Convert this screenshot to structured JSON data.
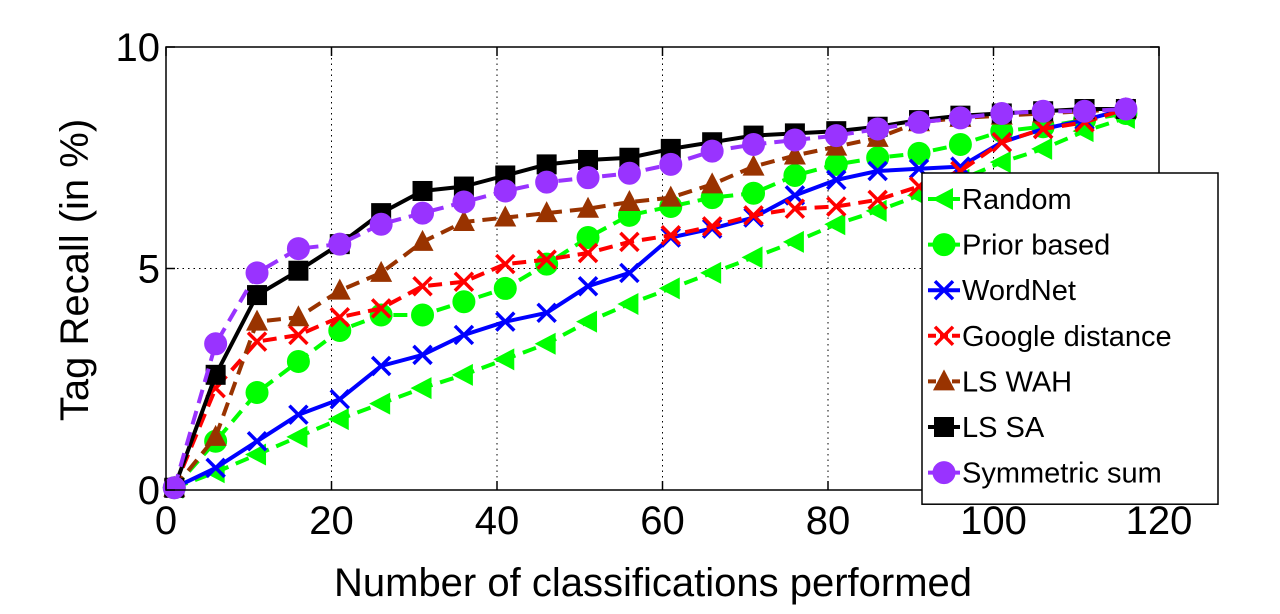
{
  "chart_data": {
    "type": "line",
    "title": "",
    "xlabel": "Number of classifications performed",
    "ylabel": "Tag Recall (in %)",
    "xlim": [
      0,
      120
    ],
    "ylim": [
      0,
      10
    ],
    "xticks": [
      0,
      20,
      40,
      60,
      80,
      100,
      120
    ],
    "yticks": [
      0,
      5,
      10
    ],
    "grid": true,
    "legend_position": "right",
    "x": [
      1,
      6,
      11,
      16,
      21,
      26,
      31,
      36,
      41,
      46,
      51,
      56,
      61,
      66,
      71,
      76,
      81,
      86,
      91,
      96,
      101,
      106,
      111,
      116
    ],
    "series": [
      {
        "name": "Random",
        "color": "#00ff00",
        "dash": "dashed",
        "marker": "triangle-left",
        "values": [
          0.05,
          0.4,
          0.8,
          1.2,
          1.6,
          1.95,
          2.3,
          2.6,
          2.95,
          3.3,
          3.8,
          4.2,
          4.55,
          4.9,
          5.25,
          5.6,
          6.0,
          6.3,
          6.65,
          7.0,
          7.4,
          7.7,
          8.1,
          8.4
        ]
      },
      {
        "name": "Prior based",
        "color": "#00ff00",
        "dash": "dashed",
        "marker": "circle",
        "values": [
          0.05,
          1.1,
          2.2,
          2.9,
          3.6,
          3.95,
          3.95,
          4.25,
          4.55,
          5.1,
          5.7,
          6.2,
          6.4,
          6.6,
          6.7,
          7.1,
          7.35,
          7.5,
          7.6,
          7.8,
          8.1,
          8.2,
          8.35,
          8.5
        ]
      },
      {
        "name": "WordNet",
        "color": "#0000ff",
        "dash": "solid",
        "marker": "x",
        "values": [
          0.05,
          0.5,
          1.1,
          1.7,
          2.05,
          2.8,
          3.05,
          3.5,
          3.8,
          4.0,
          4.6,
          4.9,
          5.7,
          5.9,
          6.15,
          6.65,
          7.0,
          7.2,
          7.25,
          7.3,
          7.85,
          8.15,
          8.35,
          8.6
        ]
      },
      {
        "name": "Google distance",
        "color": "#ff0000",
        "dash": "dashed",
        "marker": "x",
        "values": [
          0.05,
          2.3,
          3.35,
          3.5,
          3.9,
          4.1,
          4.6,
          4.7,
          5.1,
          5.2,
          5.35,
          5.6,
          5.75,
          5.95,
          6.2,
          6.35,
          6.4,
          6.55,
          6.85,
          7.2,
          7.85,
          8.15,
          8.3,
          8.6
        ]
      },
      {
        "name": "LS WAH",
        "color": "#993300",
        "dash": "dashed",
        "marker": "triangle-up",
        "values": [
          0.05,
          1.2,
          3.8,
          3.9,
          4.5,
          4.9,
          5.6,
          6.05,
          6.15,
          6.25,
          6.35,
          6.5,
          6.6,
          6.9,
          7.3,
          7.55,
          7.75,
          7.95,
          8.3,
          8.4,
          8.45,
          8.5,
          8.55,
          8.6
        ]
      },
      {
        "name": "LS SA",
        "color": "#000000",
        "dash": "solid",
        "marker": "square",
        "values": [
          0.05,
          2.6,
          4.4,
          4.95,
          5.55,
          6.25,
          6.75,
          6.85,
          7.1,
          7.35,
          7.45,
          7.5,
          7.7,
          7.85,
          8.0,
          8.05,
          8.1,
          8.2,
          8.35,
          8.45,
          8.5,
          8.55,
          8.6,
          8.6
        ]
      },
      {
        "name": "Symmetric sum",
        "color": "#9933ff",
        "dash": "dashed",
        "marker": "circle",
        "values": [
          0.05,
          3.3,
          4.9,
          5.45,
          5.55,
          6.0,
          6.25,
          6.5,
          6.75,
          6.95,
          7.05,
          7.15,
          7.35,
          7.65,
          7.8,
          7.9,
          8.0,
          8.15,
          8.3,
          8.4,
          8.5,
          8.55,
          8.55,
          8.6
        ]
      }
    ]
  }
}
